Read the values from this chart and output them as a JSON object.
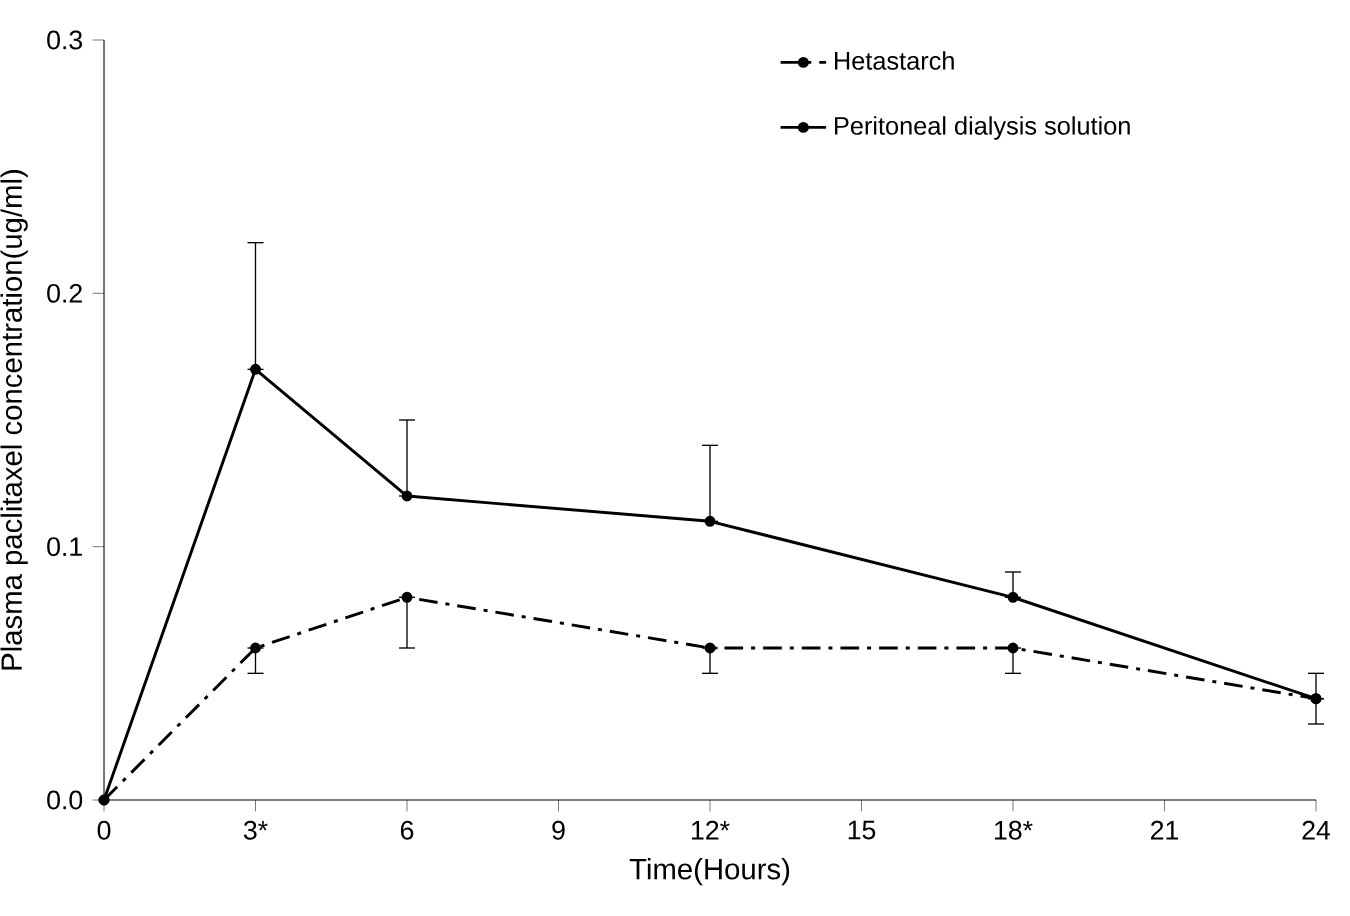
{
  "chart_data": {
    "type": "line",
    "xlabel": "Time(Hours)",
    "ylabel": "Plasma paclitaxel concentration(ug/ml)",
    "x": [
      0,
      3,
      6,
      12,
      18,
      24
    ],
    "series": [
      {
        "name": "Hetastarch",
        "color": "#000000",
        "line_style": "dashdot",
        "values": [
          0,
          0.06,
          0.08,
          0.06,
          0.06,
          0.04
        ],
        "errors": [
          null,
          [
            0.05,
            0.06
          ],
          [
            0.06,
            0.08
          ],
          [
            0.05,
            0.06
          ],
          [
            0.05,
            0.06
          ],
          [
            0.03,
            0.04
          ]
        ]
      },
      {
        "name": "Peritoneal dialysis solution",
        "color": "#000000",
        "line_style": "solid",
        "values": [
          0,
          0.17,
          0.12,
          0.11,
          0.08,
          0.04
        ],
        "errors": [
          null,
          [
            0.17,
            0.22
          ],
          [
            0.12,
            0.15
          ],
          [
            0.11,
            0.14
          ],
          [
            0.08,
            0.09
          ],
          [
            0.04,
            0.05
          ]
        ]
      }
    ],
    "xlim": [
      0,
      24
    ],
    "ylim": [
      0,
      0.3
    ],
    "xticks": [
      0,
      {
        "value": 3,
        "label": "3*"
      },
      6,
      9,
      {
        "value": 12,
        "label": "12*"
      },
      15,
      {
        "value": 18,
        "label": "18*"
      },
      21,
      24
    ],
    "yticks": [
      {
        "value": 0,
        "label": "0.0"
      },
      {
        "value": 0.1,
        "label": "0.1"
      },
      {
        "value": 0.2,
        "label": "0.2"
      },
      {
        "value": 0.3,
        "label": "0.3"
      }
    ],
    "grid": false,
    "legend": "top right",
    "marker": "circle"
  }
}
